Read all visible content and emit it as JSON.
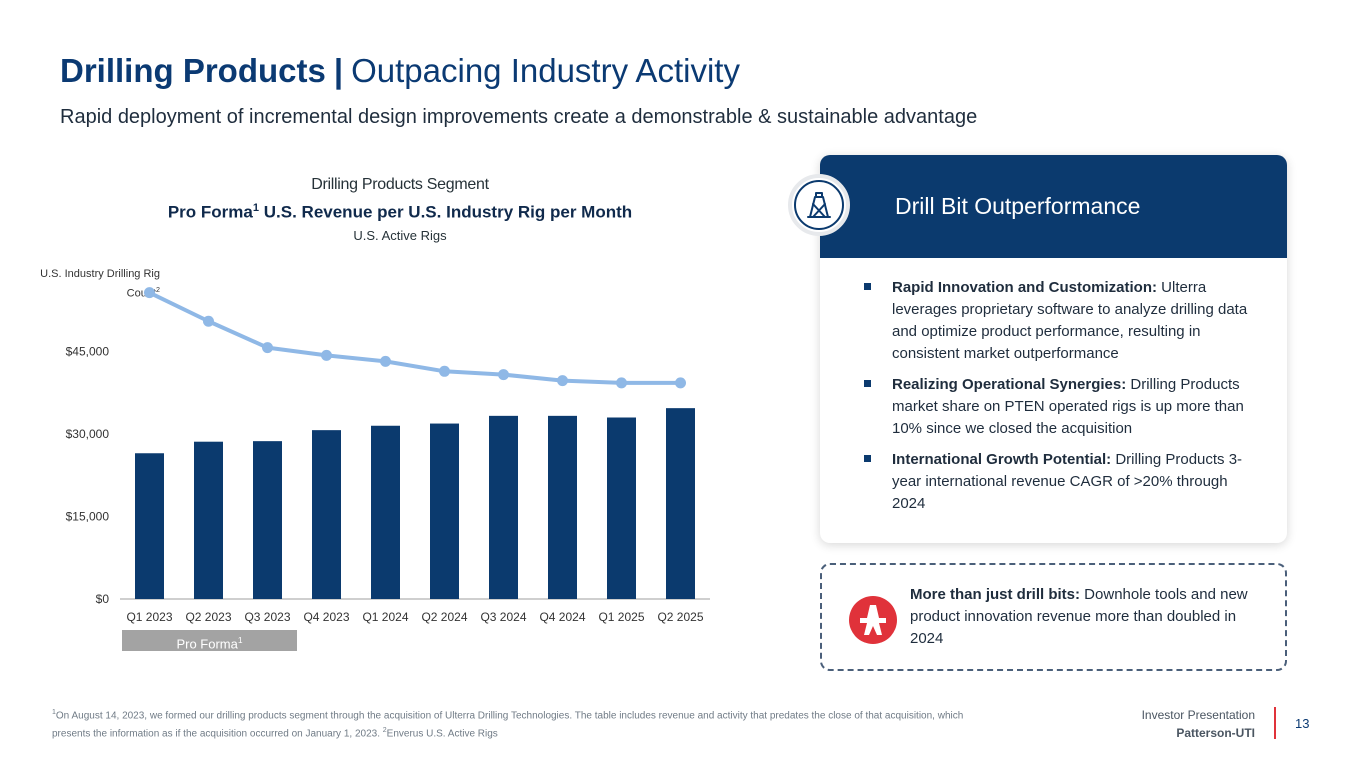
{
  "header": {
    "title_bold": "Drilling Products",
    "title_sep": "|",
    "title_light": "Outpacing Industry Activity",
    "subtitle": "Rapid deployment of incremental design improvements create a demonstrable & sustainable advantage"
  },
  "chart_head": {
    "segment": "Drilling Products Segment",
    "title_main": "Pro Forma",
    "title_sup": "1",
    "title_rest": " U.S. Revenue per U.S. Industry Rig per Month",
    "sub": "U.S. Active Rigs",
    "axis_note_main": "U.S. Industry Drilling Rig Count",
    "axis_note_sup": "2"
  },
  "proforma_badge": {
    "label": "Pro Forma",
    "sup": "1"
  },
  "chart_data": {
    "type": "bar",
    "title": "Pro Forma U.S. Revenue per U.S. Industry Rig per Month",
    "categories": [
      "Q1 2023",
      "Q2 2023",
      "Q3 2023",
      "Q4 2023",
      "Q1 2024",
      "Q2 2024",
      "Q3 2024",
      "Q4 2024",
      "Q1 2025",
      "Q2 2025"
    ],
    "series": [
      {
        "name": "Pro Forma U.S. Revenue per U.S. Industry Rig per Month",
        "kind": "bar",
        "color": "#0b3a6e",
        "values": [
          26500,
          28600,
          28700,
          30700,
          31500,
          31900,
          33300,
          33300,
          33000,
          34700
        ]
      },
      {
        "name": "U.S. Active Rigs (U.S. Industry Drilling Rig Count)",
        "kind": "line",
        "color": "#8fb8e6",
        "values": [
          55700,
          50500,
          45700,
          44300,
          43200,
          41400,
          40800,
          39700,
          39300,
          39300
        ]
      }
    ],
    "y_ticks": [
      0,
      15000,
      30000,
      45000
    ],
    "y_tick_labels": [
      "$0",
      "$15,000",
      "$30,000",
      "$45,000"
    ],
    "ylim": [
      0,
      60000
    ],
    "grid": false
  },
  "card": {
    "title": "Drill Bit Outperformance",
    "icon": "drilling-rig-icon",
    "bullets": [
      {
        "head": "Rapid Innovation and Customization:",
        "text": " Ulterra leverages proprietary software to analyze drilling data and optimize product performance, resulting in consistent market outperformance"
      },
      {
        "head": "Realizing Operational Synergies:",
        "text": " Drilling Products market share on PTEN operated rigs is up more than 10% since we closed the acquisition"
      },
      {
        "head": "International Growth Potential:",
        "text": " Drilling Products 3-year international revenue CAGR of >20% through 2024"
      }
    ]
  },
  "callout": {
    "icon": "drill-bit-icon",
    "head": "More than just drill bits:",
    "text": " Downhole tools and new product innovation revenue more than doubled in 2024"
  },
  "footnote": {
    "sup1": "1",
    "part1": "On August 14, 2023, we formed our drilling products segment through the acquisition of Ulterra Drilling Technologies. The table includes revenue and activity that predates the close of that acquisition, which presents the information as if the acquisition occurred on January 1, 2023. ",
    "sup2": "2",
    "part2": "Enverus U.S. Active Rigs"
  },
  "footer": {
    "presentation": "Investor Presentation",
    "company": "Patterson-UTI",
    "page": "13"
  },
  "colors": {
    "brand_navy": "#0b3a6e",
    "line_blue": "#8fb8e6",
    "accent_red": "#e0323a"
  }
}
